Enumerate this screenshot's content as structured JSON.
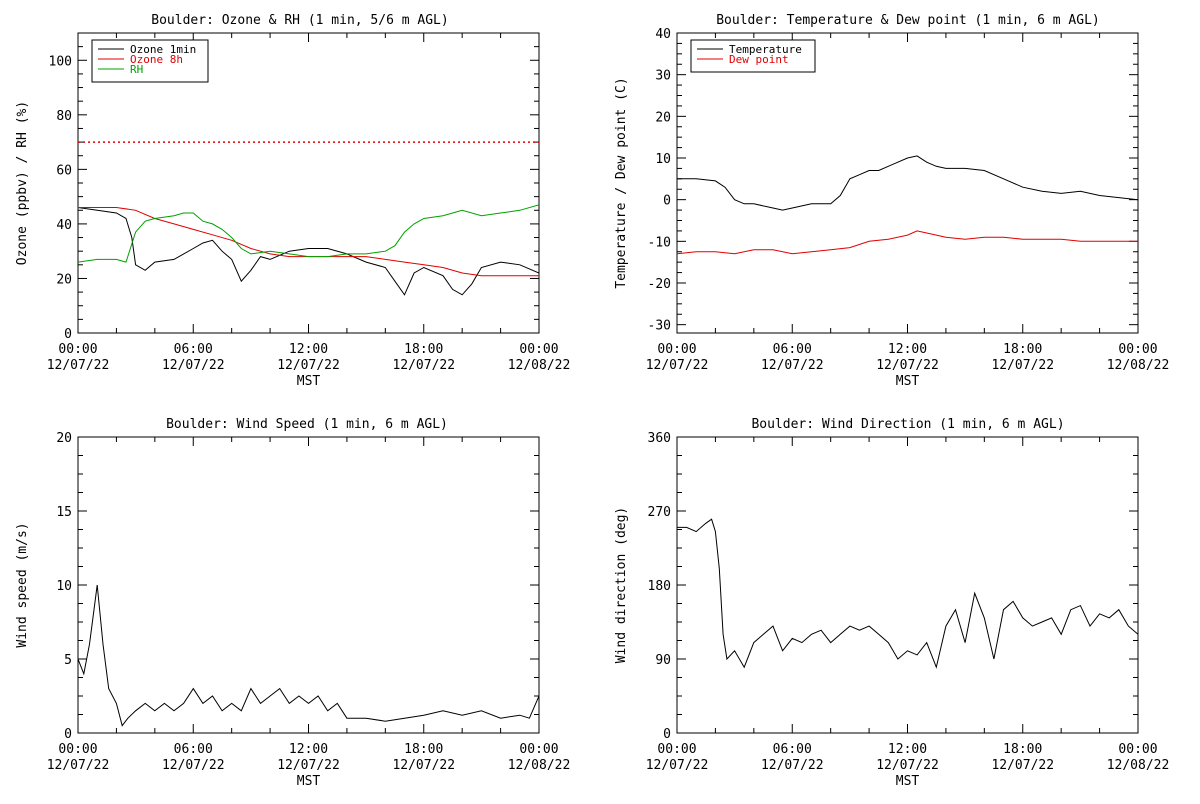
{
  "colors": {
    "black": "#000000",
    "red": "#e00000",
    "green": "#00a000"
  },
  "x_axis": {
    "range": [
      "2022-12-07 00:00",
      "2022-12-08 00:00"
    ],
    "tick_times": [
      "00:00",
      "06:00",
      "12:00",
      "18:00",
      "00:00"
    ],
    "tick_dates": [
      "12/07/22",
      "12/07/22",
      "12/07/22",
      "12/07/22",
      "12/08/22"
    ],
    "label": "MST",
    "time_zone": "MST"
  },
  "chart_data": [
    {
      "type": "line",
      "title": "Boulder: Ozone & RH (1 min, 5/6 m AGL)",
      "xlabel": "MST",
      "ylabel": "Ozone (ppbv) / RH (%)",
      "ylim": [
        0,
        110
      ],
      "yticks": [
        0,
        20,
        40,
        60,
        80,
        100
      ],
      "legend": "top-left",
      "reference_line": {
        "y": 70,
        "style": "dotted",
        "color": "#e00000"
      },
      "series": [
        {
          "name": "Ozone 1min",
          "color": "#000000",
          "x": [
            0,
            1,
            2,
            2.5,
            2.8,
            3,
            3.5,
            4,
            5,
            6,
            6.5,
            7,
            7.5,
            8,
            8.5,
            9,
            9.5,
            10,
            11,
            12,
            13,
            14,
            15,
            16,
            16.5,
            17,
            17.5,
            18,
            19,
            19.5,
            20,
            20.5,
            21,
            22,
            23,
            24
          ],
          "y": [
            46,
            45,
            44,
            42,
            35,
            25,
            23,
            26,
            27,
            31,
            33,
            34,
            30,
            27,
            19,
            23,
            28,
            27,
            30,
            31,
            31,
            29,
            26,
            24,
            19,
            14,
            22,
            24,
            21,
            16,
            14,
            18,
            24,
            26,
            25,
            22
          ]
        },
        {
          "name": "Ozone 8h",
          "color": "#e00000",
          "x": [
            0,
            1,
            2,
            3,
            4,
            5,
            6,
            7,
            8,
            9,
            10,
            11,
            12,
            13,
            14,
            15,
            16,
            17,
            18,
            19,
            20,
            21,
            22,
            23,
            24
          ],
          "y": [
            46,
            46,
            46,
            45,
            42,
            40,
            38,
            36,
            34,
            31,
            29,
            28,
            28,
            28,
            28,
            28,
            27,
            26,
            25,
            24,
            22,
            21,
            21,
            21,
            21
          ]
        },
        {
          "name": "RH",
          "color": "#00a000",
          "x": [
            0,
            1,
            2,
            2.5,
            3,
            3.5,
            4,
            5,
            5.5,
            6,
            6.5,
            7,
            7.5,
            8,
            8.5,
            9,
            10,
            11,
            12,
            13,
            14,
            15,
            16,
            16.5,
            17,
            17.5,
            18,
            19,
            20,
            21,
            22,
            23,
            24
          ],
          "y": [
            26,
            27,
            27,
            26,
            37,
            41,
            42,
            43,
            44,
            44,
            41,
            40,
            38,
            35,
            31,
            29,
            30,
            29,
            28,
            28,
            29,
            29,
            30,
            32,
            37,
            40,
            42,
            43,
            45,
            43,
            44,
            45,
            47
          ]
        }
      ]
    },
    {
      "type": "line",
      "title": "Boulder: Temperature & Dew point (1 min, 6 m AGL)",
      "xlabel": "MST",
      "ylabel": "Temperature / Dew point (C)",
      "ylim": [
        -32,
        40
      ],
      "yticks": [
        -30,
        -20,
        -10,
        0,
        10,
        20,
        30,
        40
      ],
      "legend": "top-left",
      "series": [
        {
          "name": "Temperature",
          "color": "#000000",
          "x": [
            0,
            1,
            2,
            2.5,
            3,
            3.5,
            4,
            5,
            5.5,
            6,
            6.5,
            7,
            7.5,
            8,
            8.5,
            9,
            9.5,
            10,
            10.5,
            11,
            12,
            12.5,
            13,
            13.5,
            14,
            15,
            16,
            17,
            18,
            19,
            20,
            21,
            22,
            23,
            24
          ],
          "y": [
            5,
            5,
            4.5,
            3,
            0,
            -1,
            -1,
            -2,
            -2.5,
            -2,
            -1.5,
            -1,
            -1,
            -1,
            1,
            5,
            6,
            7,
            7,
            8,
            10,
            10.5,
            9,
            8,
            7.5,
            7.5,
            7,
            5,
            3,
            2,
            1.5,
            2,
            1,
            0.5,
            0
          ]
        },
        {
          "name": "Dew point",
          "color": "#e00000",
          "x": [
            0,
            1,
            2,
            3,
            4,
            5,
            6,
            7,
            8,
            9,
            10,
            11,
            12,
            12.5,
            13,
            14,
            15,
            16,
            17,
            18,
            19,
            20,
            21,
            22,
            23,
            24
          ],
          "y": [
            -13,
            -12.5,
            -12.5,
            -13,
            -12,
            -12,
            -13,
            -12.5,
            -12,
            -11.5,
            -10,
            -9.5,
            -8.5,
            -7.5,
            -8,
            -9,
            -9.5,
            -9,
            -9,
            -9.5,
            -9.5,
            -9.5,
            -10,
            -10,
            -10,
            -10
          ]
        }
      ]
    },
    {
      "type": "line",
      "title": "Boulder: Wind Speed (1 min, 6 m AGL)",
      "xlabel": "MST",
      "ylabel": "Wind speed (m/s)",
      "ylim": [
        0,
        20
      ],
      "yticks": [
        0,
        5,
        10,
        15,
        20
      ],
      "series": [
        {
          "name": "Wind speed",
          "color": "#000000",
          "x": [
            0,
            0.3,
            0.6,
            1,
            1.3,
            1.6,
            2,
            2.3,
            2.6,
            3,
            3.5,
            4,
            4.5,
            5,
            5.5,
            6,
            6.5,
            7,
            7.5,
            8,
            8.5,
            9,
            9.5,
            10,
            10.5,
            11,
            11.5,
            12,
            12.5,
            13,
            13.5,
            14,
            15,
            16,
            17,
            18,
            19,
            20,
            21,
            22,
            23,
            23.5,
            24
          ],
          "y": [
            5,
            4,
            6,
            10,
            6,
            3,
            2,
            0.5,
            1,
            1.5,
            2,
            1.5,
            2,
            1.5,
            2,
            3,
            2,
            2.5,
            1.5,
            2,
            1.5,
            3,
            2,
            2.5,
            3,
            2,
            2.5,
            2,
            2.5,
            1.5,
            2,
            1,
            1,
            0.8,
            1,
            1.2,
            1.5,
            1.2,
            1.5,
            1,
            1.2,
            1,
            2.5
          ]
        }
      ]
    },
    {
      "type": "line",
      "title": "Boulder: Wind Direction (1 min, 6 m AGL)",
      "xlabel": "MST",
      "ylabel": "Wind direction (deg)",
      "ylim": [
        0,
        360
      ],
      "yticks": [
        0,
        90,
        180,
        270,
        360
      ],
      "series": [
        {
          "name": "Wind direction",
          "color": "#000000",
          "x": [
            0,
            0.5,
            1,
            1.5,
            1.8,
            2,
            2.2,
            2.4,
            2.6,
            3,
            3.5,
            4,
            4.5,
            5,
            5.5,
            6,
            6.5,
            7,
            7.5,
            8,
            8.5,
            9,
            9.5,
            10,
            10.5,
            11,
            11.5,
            12,
            12.5,
            13,
            13.5,
            14,
            14.5,
            15,
            15.5,
            16,
            16.5,
            17,
            17.5,
            18,
            18.5,
            19,
            19.5,
            20,
            20.5,
            21,
            21.5,
            22,
            22.5,
            23,
            23.5,
            24
          ],
          "y": [
            250,
            250,
            245,
            255,
            260,
            245,
            200,
            120,
            90,
            100,
            80,
            110,
            120,
            130,
            100,
            115,
            110,
            120,
            125,
            110,
            120,
            130,
            125,
            130,
            120,
            110,
            90,
            100,
            95,
            110,
            80,
            130,
            150,
            110,
            170,
            140,
            90,
            150,
            160,
            140,
            130,
            135,
            140,
            120,
            150,
            155,
            130,
            145,
            140,
            150,
            130,
            120
          ]
        }
      ]
    }
  ]
}
